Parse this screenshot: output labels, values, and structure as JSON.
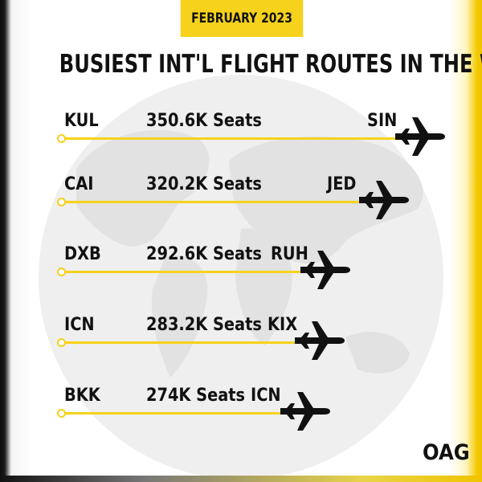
{
  "header": {
    "date": "FEBRUARY 2023"
  },
  "title": "BUSIEST INT'L FLIGHT ROUTES IN THE WORLD",
  "brand": "OAG",
  "chart_data": {
    "type": "bar",
    "title": "BUSIEST INT'L FLIGHT ROUTES IN THE WORLD",
    "unit": "Seats",
    "routes": [
      {
        "origin": "KUL",
        "destination": "SIN",
        "seats": 350.6,
        "label": "350.6K Seats"
      },
      {
        "origin": "CAI",
        "destination": "JED",
        "seats": 320.2,
        "label": "320.2K Seats"
      },
      {
        "origin": "DXB",
        "destination": "RUH",
        "seats": 292.6,
        "label": "292.6K Seats"
      },
      {
        "origin": "ICN",
        "destination": "KIX",
        "seats": 283.2,
        "label": "283.2K Seats"
      },
      {
        "origin": "BKK",
        "destination": "ICN",
        "seats": 274,
        "label": "274K Seats"
      }
    ],
    "colors": {
      "accent": "#f6d21c",
      "text": "#111111",
      "map": "#ebebeb"
    }
  }
}
